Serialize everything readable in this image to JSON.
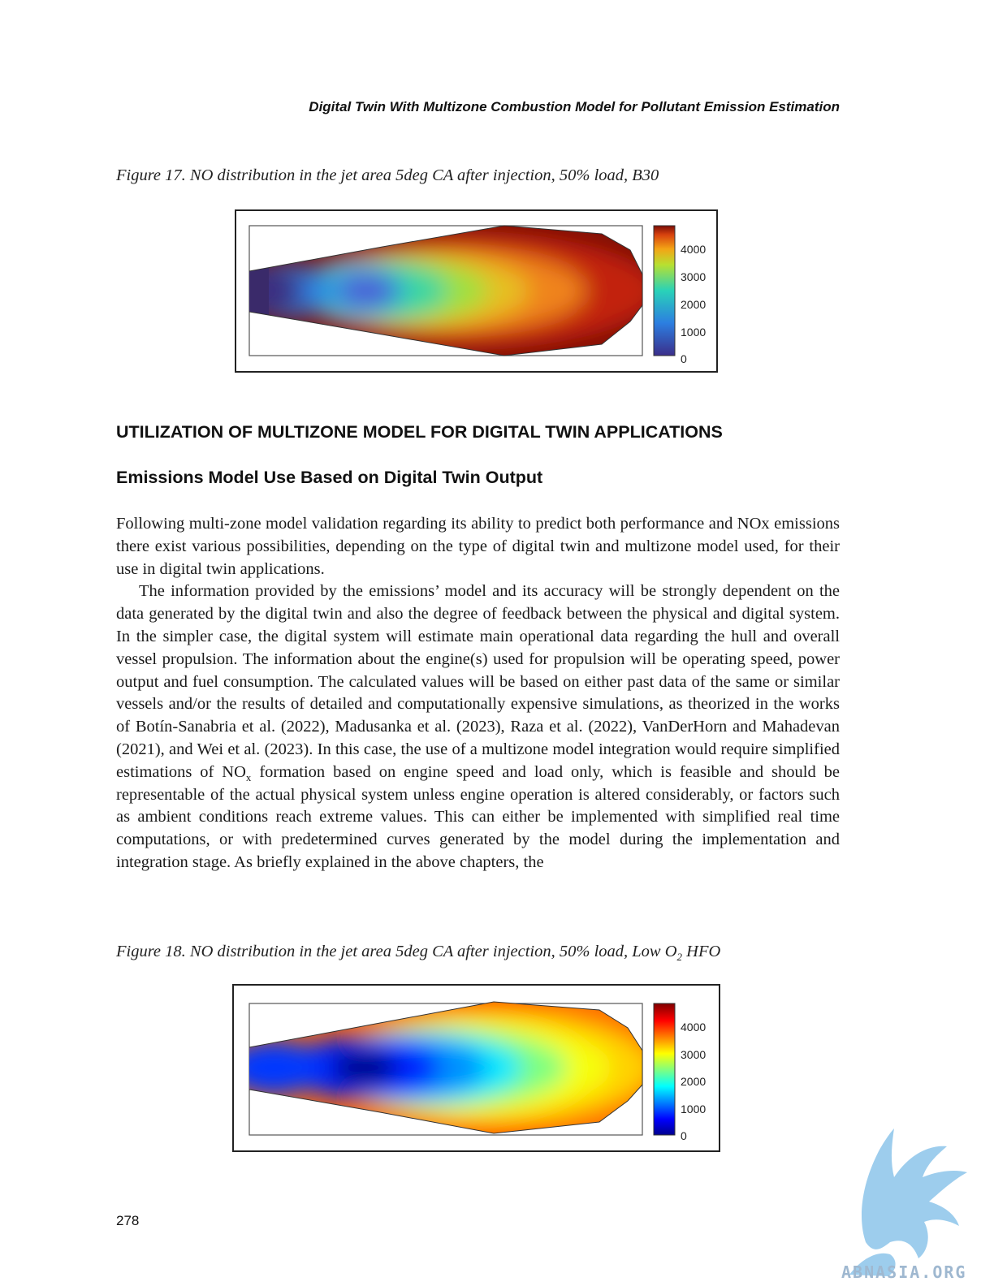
{
  "header": {
    "running_title": "Digital Twin With Multizone Combustion Model for Pollutant Emission Estimation"
  },
  "figure17": {
    "caption": "Figure 17. NO distribution in the jet area 5deg CA after injection, 50% load, B30",
    "colorbar_ticks": [
      "4000",
      "3000",
      "2000",
      "1000",
      "0"
    ],
    "colormap": "parula-like",
    "colors": {
      "low": "#3b2e8a",
      "mid": "#29d2b8",
      "high": "#7a0c06"
    }
  },
  "section": {
    "heading": "UTILIZATION OF MULTIZONE MODEL FOR DIGITAL TWIN APPLICATIONS",
    "subheading": "Emissions Model Use Based on Digital Twin Output",
    "paragraph1": "Following multi-zone model validation regarding its ability to predict both performance and NOx emissions there exist various possibilities, depending on the type of digital twin and multizone model used, for their use in digital twin applications.",
    "paragraph2_part1": "The information provided by the emissions’ model and its accuracy will be strongly dependent on the data generated by the digital twin and also the degree of feedback between the physical and digital system. In the simpler case, the digital system will estimate main operational data regarding the hull and overall vessel propulsion. The information about the engine(s) used for propulsion will be operating speed, power output and fuel consumption. The calculated values will be based on either past data of the same or similar vessels and/or the results of detailed and computationally expensive simulations, as theorized in the works of Botín-Sanabria et al. (2022), Madusanka et al. (2023), Raza et al. (2022), VanDerHorn and Mahadevan (2021), and Wei et al. (2023). In this case, the use of a multizone model integration would require simplified estimations of NO",
    "paragraph2_sub": "x",
    "paragraph2_part2": " formation based on engine speed and load only, which is feasible and should be representable of the actual physical system unless engine operation is altered considerably, or factors such as ambient conditions reach extreme values. This can either be implemented with simplified real time computations, or with predetermined curves generated by the model during the implementation and integration stage. As briefly explained in the above chapters, the"
  },
  "figure18": {
    "caption_part1": "Figure 18. NO distribution in the jet area 5deg CA after injection, 50% load, Low O",
    "caption_sub": "2",
    "caption_part2": " HFO",
    "colorbar_ticks": [
      "4000",
      "3000",
      "2000",
      "1000",
      "0"
    ],
    "colormap": "jet",
    "colors": {
      "low": "#00008f",
      "mid": "#00ffff",
      "high": "#b00000"
    }
  },
  "footer": {
    "page_number": "278"
  },
  "watermark": {
    "text": "ABNASIA.ORG"
  }
}
